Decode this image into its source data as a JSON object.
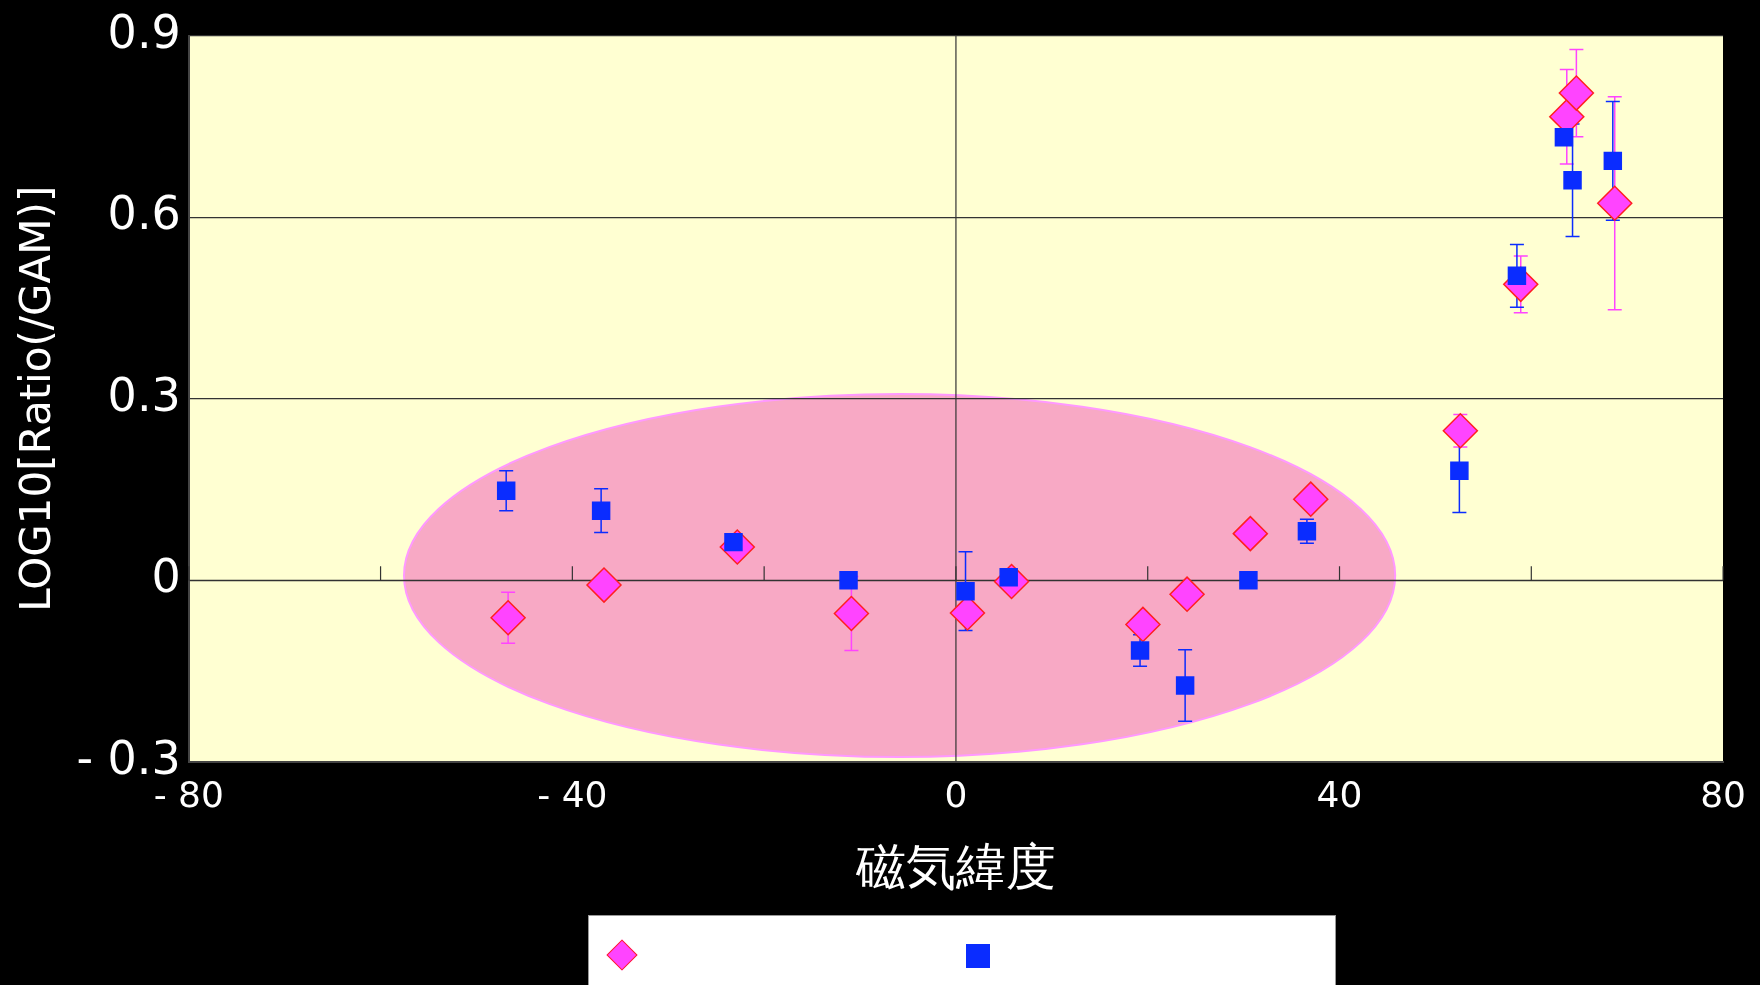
{
  "chart_data": {
    "type": "scatter",
    "xlabel": "磁気緯度",
    "ylabel": "LOG10[Ratio(/GAM)]",
    "xlim": [
      -80,
      80
    ],
    "xticks": [
      {
        "value": -80,
        "label": "- 80"
      },
      {
        "value": -60,
        "label": null
      },
      {
        "value": -40,
        "label": "- 40"
      },
      {
        "value": -20,
        "label": null
      },
      0,
      {
        "value": 20,
        "label": null
      },
      40,
      {
        "value": 60,
        "label": null
      },
      80
    ],
    "ylim": [
      -0.3,
      0.9
    ],
    "yticks": [
      {
        "value": -0.3,
        "label": "- 0.3"
      },
      0,
      0.3,
      0.6,
      0.9
    ],
    "grid": "y",
    "legend": false,
    "ref_lines": [
      {
        "axis": "x",
        "value": 0,
        "color": "#333333"
      }
    ],
    "series": [
      {
        "color": "#ff44ff",
        "marker": "diamond",
        "x": [
          -46.7,
          -36.7,
          -22.8,
          -10.9,
          1.2,
          5.8,
          19.5,
          24.1,
          30.7,
          37.0,
          52.6,
          58.9,
          63.7,
          64.7,
          68.7
        ],
        "values": [
          -0.062,
          -0.008,
          0.055,
          -0.055,
          -0.054,
          -0.002,
          -0.073,
          -0.023,
          0.077,
          0.134,
          0.247,
          0.489,
          0.766,
          0.805,
          0.623
        ],
        "errors": [
          0.042,
          null,
          null,
          0.061,
          null,
          null,
          null,
          null,
          null,
          null,
          0.027,
          0.047,
          0.078,
          0.072,
          0.176
        ]
      },
      {
        "color": "#0a2cff",
        "marker": "square",
        "x": [
          -46.9,
          -37.0,
          -23.2,
          -11.2,
          1.0,
          5.5,
          19.2,
          23.9,
          30.5,
          36.6,
          52.5,
          58.5,
          63.4,
          64.3,
          68.5
        ],
        "values": [
          0.148,
          0.115,
          0.063,
          0.0,
          -0.018,
          0.005,
          -0.116,
          -0.174,
          0.0,
          0.081,
          0.181,
          0.503,
          0.732,
          0.661,
          0.693
        ],
        "errors": [
          0.033,
          0.036,
          null,
          null,
          0.065,
          null,
          0.026,
          0.059,
          null,
          0.02,
          0.069,
          0.052,
          null,
          0.093,
          0.098
        ]
      }
    ]
  }
}
